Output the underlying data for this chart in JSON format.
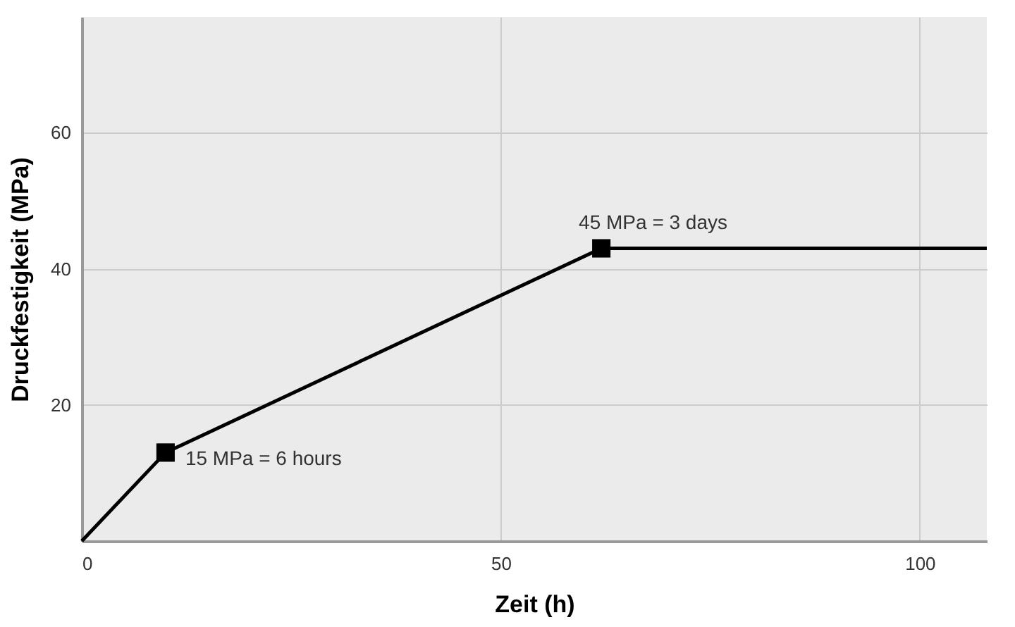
{
  "chart_data": {
    "type": "line",
    "xlabel": "Zeit (h)",
    "ylabel": "Druckfestigkeit (MPa)",
    "xlim": [
      0,
      108
    ],
    "xticks": [
      0,
      50,
      100
    ],
    "ylim": [
      0,
      77
    ],
    "yticks": [
      20,
      40,
      60
    ],
    "grid": true,
    "series": [
      {
        "color": "#000000",
        "x": [
          0,
          10,
          62,
          108
        ],
        "values": [
          0,
          13,
          43,
          43
        ],
        "marker": "none",
        "line_style": "solid"
      },
      {
        "type": "scatter",
        "color": "#000000",
        "x": [
          10,
          62
        ],
        "values": [
          13,
          43
        ],
        "marker": "square"
      }
    ],
    "annotations": [
      {
        "text": "15 MPa = 6 hours",
        "x": 10,
        "y": 13
      },
      {
        "text": "45 MPa = 3 days",
        "x": 62,
        "y": 43
      }
    ]
  }
}
